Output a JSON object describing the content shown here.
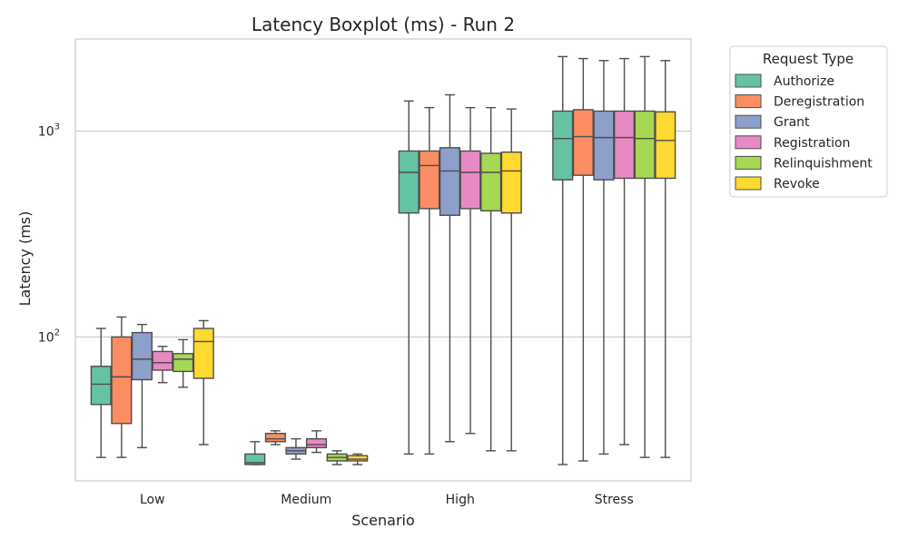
{
  "chart_data": {
    "type": "boxplot",
    "title": "Latency Boxplot (ms) - Run 2",
    "xlabel": "Scenario",
    "ylabel": "Latency (ms)",
    "yscale": "log",
    "ylim": [
      20,
      2800
    ],
    "ytick_labels": [
      {
        "value": 100,
        "base": "10",
        "exp": "2"
      },
      {
        "value": 1000,
        "base": "10",
        "exp": "3"
      }
    ],
    "grid": "horizontal",
    "legend_title": "Request Type",
    "legend_position": "outside-upper-right",
    "categories": [
      "Low",
      "Medium",
      "High",
      "Stress"
    ],
    "series": [
      {
        "name": "Authorize",
        "color": "#66c2a5",
        "boxes": [
          {
            "whislo": 26,
            "q1": 47,
            "med": 59,
            "q3": 72,
            "whishi": 110
          },
          {
            "whislo": 24,
            "q1": 24,
            "med": 24.5,
            "q3": 27,
            "whishi": 31
          },
          {
            "whislo": 27,
            "q1": 400,
            "med": 630,
            "q3": 800,
            "whishi": 1400
          },
          {
            "whislo": 24,
            "q1": 580,
            "med": 920,
            "q3": 1250,
            "whishi": 2300
          }
        ]
      },
      {
        "name": "Deregistration",
        "color": "#fc8d62",
        "boxes": [
          {
            "whislo": 26,
            "q1": 38,
            "med": 64,
            "q3": 100,
            "whishi": 125
          },
          {
            "whislo": 30,
            "q1": 31,
            "med": 32,
            "q3": 34,
            "whishi": 35
          },
          {
            "whislo": 27,
            "q1": 420,
            "med": 680,
            "q3": 800,
            "whishi": 1300
          },
          {
            "whislo": 25,
            "q1": 610,
            "med": 940,
            "q3": 1270,
            "whishi": 2250
          }
        ]
      },
      {
        "name": "Grant",
        "color": "#8da0cb",
        "boxes": [
          {
            "whislo": 29,
            "q1": 62,
            "med": 78,
            "q3": 105,
            "whishi": 115
          },
          {
            "whislo": 25.5,
            "q1": 27,
            "med": 28,
            "q3": 29,
            "whishi": 32
          },
          {
            "whislo": 31,
            "q1": 390,
            "med": 640,
            "q3": 830,
            "whishi": 1500
          },
          {
            "whislo": 27,
            "q1": 580,
            "med": 930,
            "q3": 1250,
            "whishi": 2200
          }
        ]
      },
      {
        "name": "Registration",
        "color": "#e78ac3",
        "boxes": [
          {
            "whislo": 60,
            "q1": 69,
            "med": 75,
            "q3": 85,
            "whishi": 90
          },
          {
            "whislo": 27.5,
            "q1": 29,
            "med": 30,
            "q3": 32,
            "whishi": 35
          },
          {
            "whislo": 34,
            "q1": 420,
            "med": 630,
            "q3": 800,
            "whishi": 1300
          },
          {
            "whislo": 30,
            "q1": 590,
            "med": 930,
            "q3": 1250,
            "whishi": 2250
          }
        ]
      },
      {
        "name": "Relinquishment",
        "color": "#a6d854",
        "boxes": [
          {
            "whislo": 57,
            "q1": 68,
            "med": 78,
            "q3": 83,
            "whishi": 97
          },
          {
            "whislo": 24,
            "q1": 25,
            "med": 26,
            "q3": 27,
            "whishi": 28
          },
          {
            "whislo": 28,
            "q1": 410,
            "med": 630,
            "q3": 780,
            "whishi": 1300
          },
          {
            "whislo": 26,
            "q1": 590,
            "med": 920,
            "q3": 1250,
            "whishi": 2300
          }
        ]
      },
      {
        "name": "Revoke",
        "color": "#ffd92f",
        "boxes": [
          {
            "whislo": 30,
            "q1": 63,
            "med": 95,
            "q3": 110,
            "whishi": 120
          },
          {
            "whislo": 24,
            "q1": 25,
            "med": 25.5,
            "q3": 26.5,
            "whishi": 27
          },
          {
            "whislo": 28,
            "q1": 400,
            "med": 640,
            "q3": 790,
            "whishi": 1280
          },
          {
            "whislo": 26,
            "q1": 590,
            "med": 900,
            "q3": 1240,
            "whishi": 2200
          }
        ]
      }
    ]
  }
}
